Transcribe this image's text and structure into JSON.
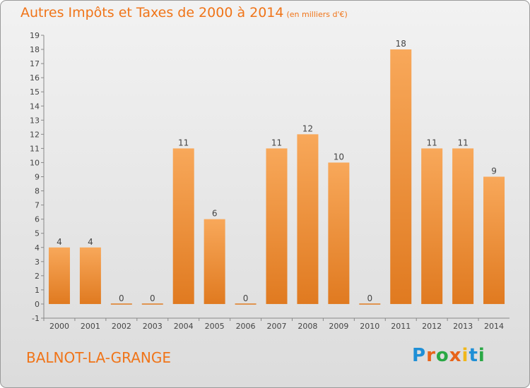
{
  "header": {
    "title": "Autres Impôts et Taxes de 2000 à 2014",
    "unit": "(en milliers d'€)"
  },
  "footer": {
    "commune": "BALNOT-LA-GRANGE",
    "logo": {
      "letters": [
        "P",
        "r",
        "o",
        "x",
        "i",
        "t",
        "i"
      ],
      "colors": [
        "#1e8fd6",
        "#e8641a",
        "#2aa845",
        "#e8641a",
        "#f0b71a",
        "#1e8fd6",
        "#2aa845"
      ]
    }
  },
  "colors": {
    "bar_top": "#f8a85a",
    "bar_bottom": "#e07a20",
    "accent": "#f07418"
  },
  "chart_data": {
    "type": "bar",
    "title": "Autres Impôts et Taxes de 2000 à 2014",
    "xlabel": "",
    "ylabel": "",
    "categories": [
      "2000",
      "2001",
      "2002",
      "2003",
      "2004",
      "2005",
      "2006",
      "2007",
      "2008",
      "2009",
      "2010",
      "2011",
      "2012",
      "2013",
      "2014"
    ],
    "values": [
      4,
      4,
      0,
      0,
      11,
      6,
      0,
      11,
      12,
      10,
      0,
      18,
      11,
      11,
      9
    ],
    "ylim": [
      -1,
      19
    ],
    "yticks": [
      -1,
      0,
      1,
      2,
      3,
      4,
      5,
      6,
      7,
      8,
      9,
      10,
      11,
      12,
      13,
      14,
      15,
      16,
      17,
      18,
      19
    ],
    "grid": false,
    "legend": "none"
  }
}
